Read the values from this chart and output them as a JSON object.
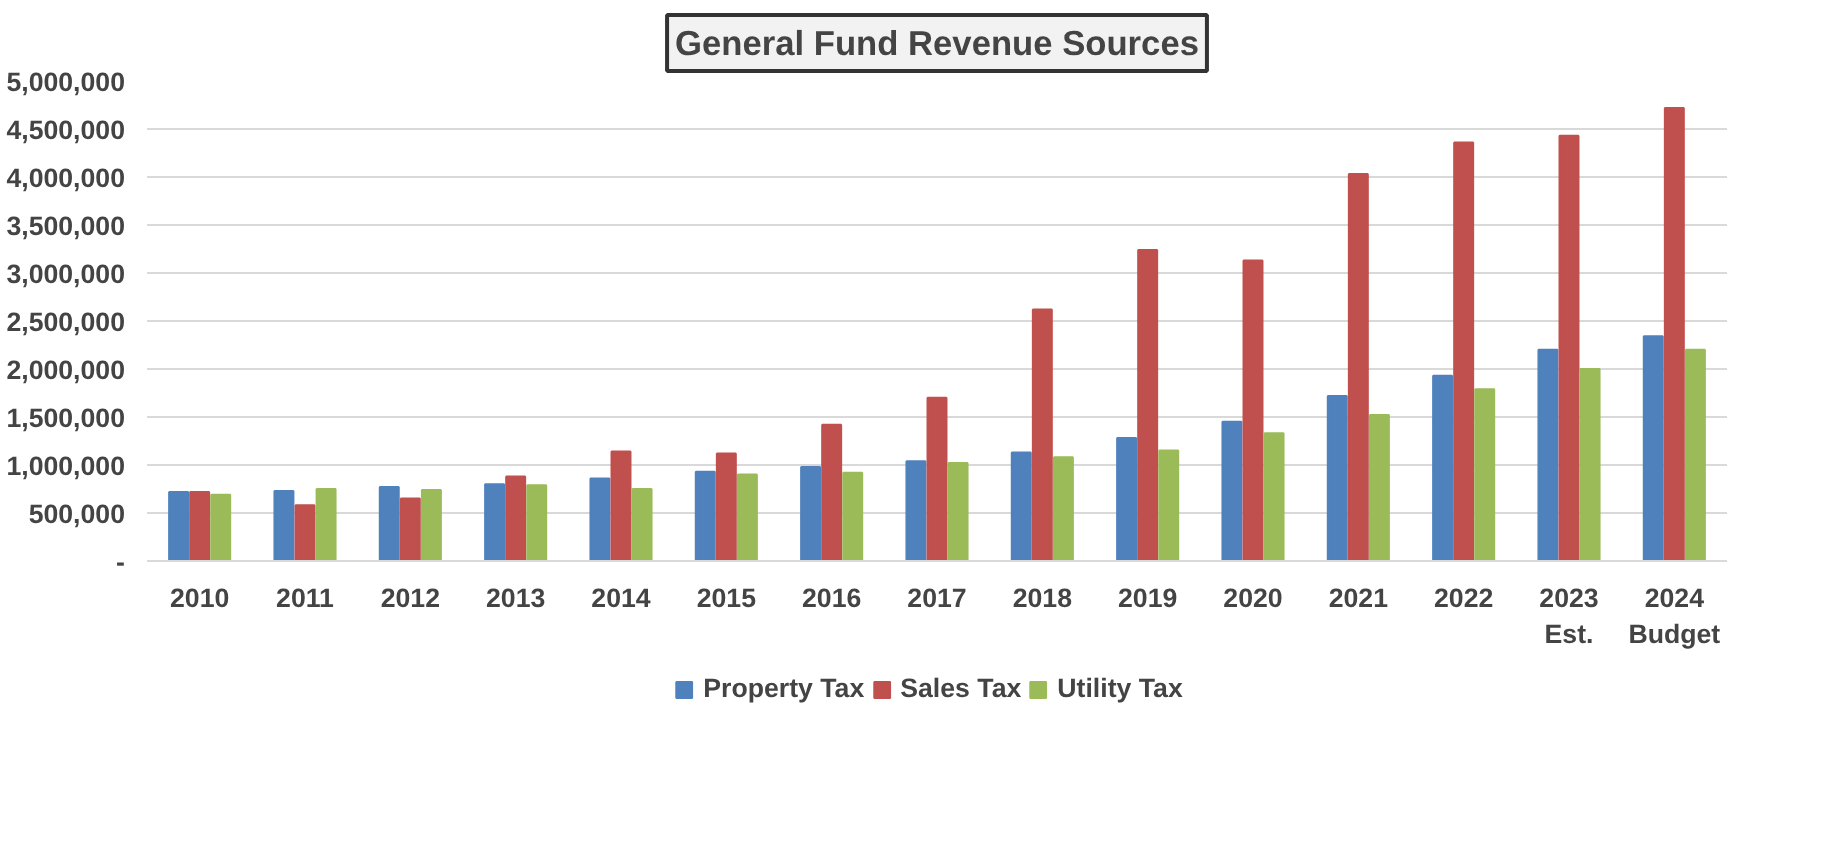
{
  "chart_data": {
    "type": "bar",
    "title": "General Fund Revenue Sources",
    "categories": [
      "2010",
      "2011",
      "2012",
      "2013",
      "2014",
      "2015",
      "2016",
      "2017",
      "2018",
      "2019",
      "2020",
      "2021",
      "2022",
      "2023\nEst.",
      "2024\nBudget"
    ],
    "series": [
      {
        "name": "Property Tax",
        "color": "#4f81bd",
        "values": [
          720000,
          730000,
          770000,
          800000,
          860000,
          930000,
          980000,
          1040000,
          1130000,
          1280000,
          1450000,
          1720000,
          1930000,
          2200000,
          2340000
        ]
      },
      {
        "name": "Sales Tax",
        "color": "#c0504d",
        "values": [
          720000,
          580000,
          650000,
          880000,
          1140000,
          1120000,
          1420000,
          1700000,
          2620000,
          3240000,
          3130000,
          4030000,
          4360000,
          4430000,
          4720000
        ]
      },
      {
        "name": "Utility Tax",
        "color": "#9bbb59",
        "values": [
          690000,
          750000,
          740000,
          790000,
          750000,
          900000,
          920000,
          1020000,
          1080000,
          1150000,
          1330000,
          1520000,
          1790000,
          2000000,
          2200000
        ]
      }
    ],
    "ylim": [
      0,
      5000000
    ],
    "yticks": [
      {
        "value": 0,
        "label": "-"
      },
      {
        "value": 500000,
        "label": "500,000"
      },
      {
        "value": 1000000,
        "label": "1,000,000"
      },
      {
        "value": 1500000,
        "label": "1,500,000"
      },
      {
        "value": 2000000,
        "label": "2,000,000"
      },
      {
        "value": 2500000,
        "label": "2,500,000"
      },
      {
        "value": 3000000,
        "label": "3,000,000"
      },
      {
        "value": 3500000,
        "label": "3,500,000"
      },
      {
        "value": 4000000,
        "label": "4,000,000"
      },
      {
        "value": 4500000,
        "label": "4,500,000"
      },
      {
        "value": 5000000,
        "label": "5,000,000"
      }
    ],
    "grid": "y",
    "legend": "bottom"
  }
}
